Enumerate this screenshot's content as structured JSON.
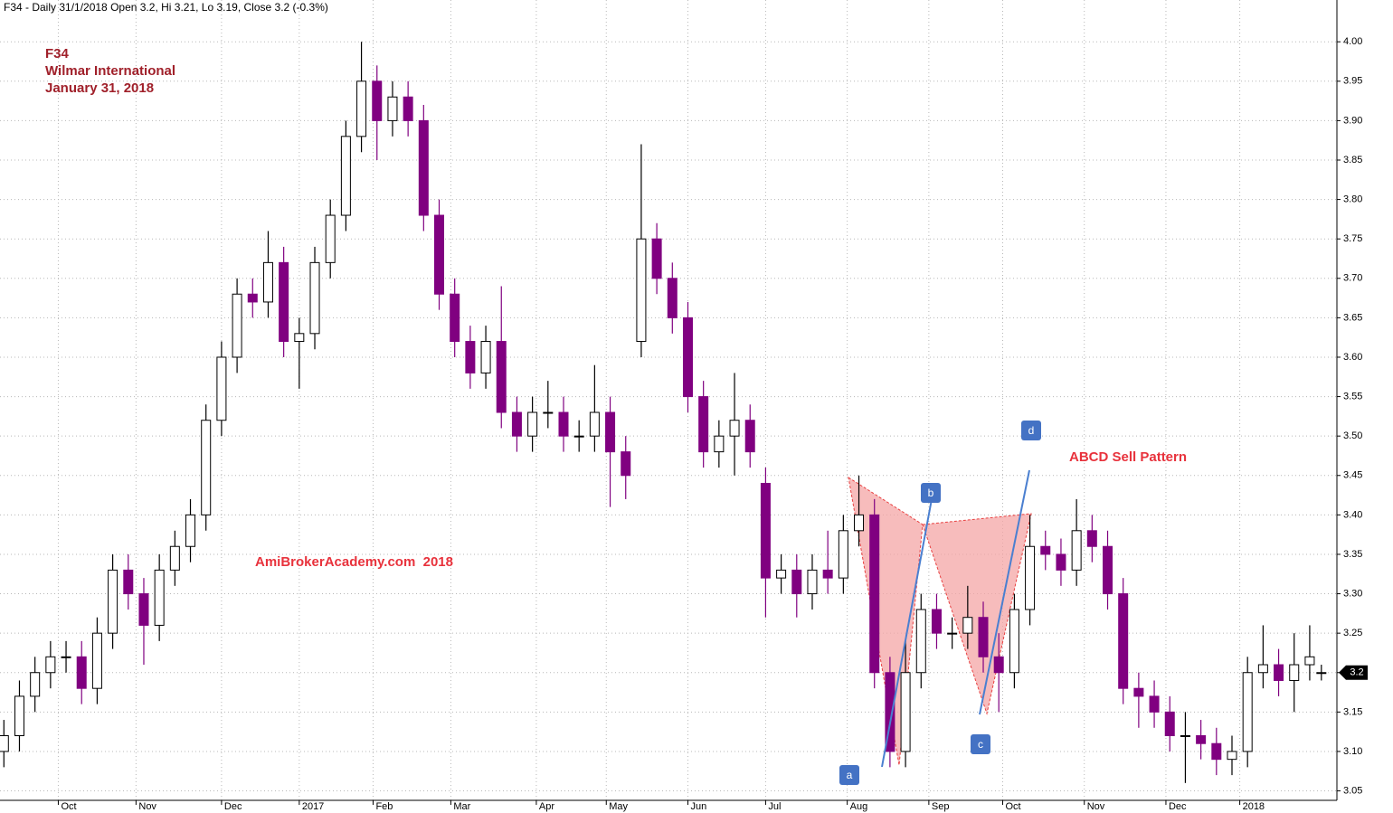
{
  "chart_data": {
    "type": "candlestick",
    "title": "F34 - Daily 31/1/2018 Open 3.2, Hi 3.21, Lo 3.19, Close 3.2 (-0.3%)",
    "annotations": [
      "F34",
      "Wilmar International",
      "January 31, 2018",
      "AmiBrokerAcademy.com  2018",
      "ABCD Sell Pattern"
    ],
    "pattern_labels": [
      "a",
      "b",
      "c",
      "d"
    ],
    "x": [
      1,
      5,
      9,
      13,
      17,
      21,
      25,
      29,
      33,
      37,
      41,
      45,
      49,
      53,
      57,
      61,
      65,
      69,
      73,
      77,
      81,
      85,
      89,
      93,
      97,
      101,
      105,
      109,
      113,
      117,
      121,
      125,
      129,
      133,
      137,
      141,
      145,
      149,
      153,
      157,
      161,
      165,
      169,
      173,
      177,
      181,
      185,
      189,
      193,
      197,
      201,
      205,
      209,
      213,
      217,
      221,
      225,
      229,
      233,
      237,
      241,
      245,
      249,
      253,
      257,
      261,
      265,
      269,
      273,
      277,
      281,
      285,
      289,
      293,
      297,
      301,
      305,
      309,
      313,
      317,
      321,
      325,
      329,
      333,
      337,
      340
    ],
    "open": [
      3.1,
      3.12,
      3.17,
      3.2,
      3.22,
      3.22,
      3.18,
      3.25,
      3.33,
      3.3,
      3.26,
      3.33,
      3.36,
      3.4,
      3.52,
      3.6,
      3.68,
      3.67,
      3.72,
      3.62,
      3.63,
      3.72,
      3.78,
      3.88,
      3.95,
      3.9,
      3.93,
      3.9,
      3.78,
      3.68,
      3.62,
      3.58,
      3.62,
      3.53,
      3.5,
      3.53,
      3.53,
      3.5,
      3.5,
      3.53,
      3.48,
      3.62,
      3.75,
      3.7,
      3.65,
      3.55,
      3.48,
      3.5,
      3.52,
      3.44,
      3.32,
      3.33,
      3.3,
      3.33,
      3.32,
      3.38,
      3.4,
      3.2,
      3.1,
      3.2,
      3.28,
      3.25,
      3.25,
      3.27,
      3.22,
      3.2,
      3.28,
      3.36,
      3.35,
      3.33,
      3.38,
      3.36,
      3.3,
      3.18,
      3.17,
      3.15,
      3.12,
      3.12,
      3.11,
      3.09,
      3.1,
      3.2,
      3.21,
      3.19,
      3.21,
      3.2
    ],
    "high": [
      3.14,
      3.19,
      3.22,
      3.24,
      3.24,
      3.24,
      3.27,
      3.35,
      3.35,
      3.32,
      3.35,
      3.38,
      3.42,
      3.54,
      3.62,
      3.7,
      3.7,
      3.76,
      3.74,
      3.65,
      3.74,
      3.8,
      3.9,
      4.0,
      3.97,
      3.95,
      3.95,
      3.92,
      3.8,
      3.7,
      3.64,
      3.64,
      3.69,
      3.55,
      3.55,
      3.57,
      3.55,
      3.52,
      3.59,
      3.55,
      3.5,
      3.87,
      3.77,
      3.72,
      3.67,
      3.57,
      3.52,
      3.58,
      3.54,
      3.46,
      3.35,
      3.35,
      3.35,
      3.38,
      3.4,
      3.45,
      3.42,
      3.22,
      3.24,
      3.3,
      3.3,
      3.27,
      3.31,
      3.29,
      3.25,
      3.3,
      3.4,
      3.38,
      3.37,
      3.42,
      3.4,
      3.38,
      3.32,
      3.2,
      3.19,
      3.17,
      3.15,
      3.14,
      3.13,
      3.12,
      3.22,
      3.26,
      3.23,
      3.25,
      3.26,
      3.21
    ],
    "low": [
      3.08,
      3.1,
      3.15,
      3.18,
      3.2,
      3.16,
      3.16,
      3.23,
      3.28,
      3.21,
      3.24,
      3.31,
      3.34,
      3.38,
      3.5,
      3.58,
      3.65,
      3.65,
      3.6,
      3.56,
      3.61,
      3.7,
      3.76,
      3.86,
      3.85,
      3.88,
      3.88,
      3.76,
      3.66,
      3.6,
      3.56,
      3.56,
      3.51,
      3.48,
      3.48,
      3.51,
      3.48,
      3.48,
      3.48,
      3.41,
      3.42,
      3.6,
      3.68,
      3.63,
      3.53,
      3.46,
      3.46,
      3.45,
      3.46,
      3.27,
      3.3,
      3.27,
      3.28,
      3.3,
      3.3,
      3.36,
      3.18,
      3.08,
      3.08,
      3.18,
      3.23,
      3.23,
      3.23,
      3.2,
      3.15,
      3.18,
      3.26,
      3.33,
      3.31,
      3.31,
      3.34,
      3.28,
      3.16,
      3.13,
      3.13,
      3.1,
      3.06,
      3.09,
      3.07,
      3.07,
      3.08,
      3.18,
      3.17,
      3.15,
      3.19,
      3.19
    ],
    "close": [
      3.12,
      3.17,
      3.2,
      3.22,
      3.22,
      3.18,
      3.25,
      3.33,
      3.3,
      3.26,
      3.33,
      3.36,
      3.4,
      3.52,
      3.6,
      3.68,
      3.67,
      3.72,
      3.62,
      3.63,
      3.72,
      3.78,
      3.88,
      3.95,
      3.9,
      3.93,
      3.9,
      3.78,
      3.68,
      3.62,
      3.58,
      3.62,
      3.53,
      3.5,
      3.53,
      3.53,
      3.5,
      3.5,
      3.53,
      3.48,
      3.45,
      3.75,
      3.7,
      3.65,
      3.55,
      3.48,
      3.5,
      3.52,
      3.48,
      3.32,
      3.33,
      3.3,
      3.33,
      3.32,
      3.38,
      3.4,
      3.2,
      3.1,
      3.2,
      3.28,
      3.25,
      3.25,
      3.27,
      3.22,
      3.2,
      3.28,
      3.36,
      3.35,
      3.33,
      3.38,
      3.36,
      3.3,
      3.18,
      3.17,
      3.15,
      3.12,
      3.12,
      3.11,
      3.09,
      3.1,
      3.2,
      3.21,
      3.19,
      3.21,
      3.22,
      3.2
    ],
    "up_color": "#ffffff",
    "down_color": "#800080",
    "outline_color": "#000000",
    "xlim": [
      0,
      344
    ],
    "ylim": [
      3.038,
      4.053
    ],
    "xticks": [
      {
        "value": 15,
        "label": "Oct"
      },
      {
        "value": 35,
        "label": "Nov"
      },
      {
        "value": 57,
        "label": "Dec"
      },
      {
        "value": 77,
        "label": "2017"
      },
      {
        "value": 96,
        "label": "Feb"
      },
      {
        "value": 116,
        "label": "Mar"
      },
      {
        "value": 138,
        "label": "Apr"
      },
      {
        "value": 156,
        "label": "May"
      },
      {
        "value": 177,
        "label": "Jun"
      },
      {
        "value": 197,
        "label": "Jul"
      },
      {
        "value": 218,
        "label": "Aug"
      },
      {
        "value": 239,
        "label": "Sep"
      },
      {
        "value": 258,
        "label": "Oct"
      },
      {
        "value": 279,
        "label": "Nov"
      },
      {
        "value": 300,
        "label": "Dec"
      },
      {
        "value": 319,
        "label": "2018"
      }
    ],
    "yticks": [
      3.05,
      {
        "value": 3.1,
        "label": "3.10"
      },
      3.15,
      {
        "value": 3.2,
        "label": "3.20"
      },
      3.25,
      {
        "value": 3.3,
        "label": "3.30"
      },
      3.35,
      {
        "value": 3.4,
        "label": "3.40"
      },
      3.45,
      {
        "value": 3.5,
        "label": "3.50"
      },
      3.55,
      {
        "value": 3.6,
        "label": "3.60"
      },
      3.65,
      {
        "value": 3.7,
        "label": "3.70"
      },
      3.75,
      {
        "value": 3.8,
        "label": "3.80"
      },
      3.85,
      {
        "value": 3.9,
        "label": "3.90"
      },
      3.95,
      {
        "value": 4,
        "label": "4.00"
      }
    ],
    "grid": true
  }
}
